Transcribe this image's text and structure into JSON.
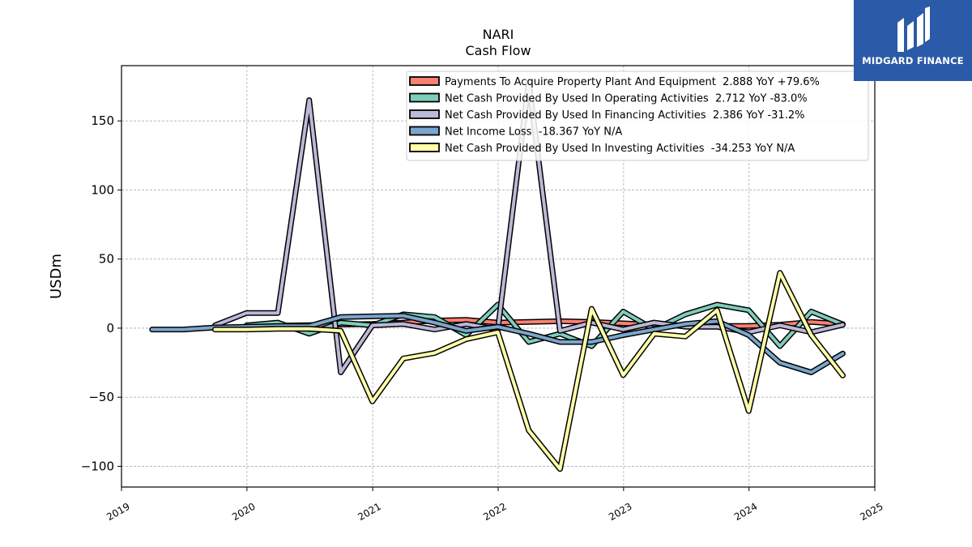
{
  "chart_data": {
    "type": "line",
    "title": "NARI",
    "subtitle": "Cash Flow",
    "xlabel": "",
    "ylabel": "USDm",
    "xlim": [
      "2019-01-01",
      "2025-01-01"
    ],
    "ylim": [
      -115,
      190
    ],
    "x_ticks": [
      "2019",
      "2020",
      "2021",
      "2022",
      "2023",
      "2024",
      "2025"
    ],
    "y_ticks": [
      -100,
      -50,
      0,
      50,
      100,
      150
    ],
    "y_tick_labels": [
      "−100",
      "−50",
      "0",
      "50",
      "100",
      "150"
    ],
    "grid": true,
    "legend_position": "top-right",
    "series": [
      {
        "name": "Payments To Acquire Property Plant And Equipment  2.888 YoY +79.6%",
        "color": "#fa8072",
        "x": [
          "2019-12-31",
          "2020-03-31",
          "2020-06-30",
          "2020-09-30",
          "2020-12-31",
          "2021-03-31",
          "2021-06-30",
          "2021-09-30",
          "2021-12-31",
          "2022-03-31",
          "2022-06-30",
          "2022-09-30",
          "2022-12-31",
          "2023-03-31",
          "2023-06-30",
          "2023-09-30",
          "2023-12-31",
          "2024-03-31",
          "2024-06-30",
          "2024-09-30"
        ],
        "values": [
          1.5,
          1.8,
          2.2,
          2.6,
          3.0,
          4.0,
          5.5,
          6.0,
          4.0,
          4.5,
          5.0,
          4.5,
          3.5,
          2.5,
          2.0,
          1.6,
          1.6,
          2.5,
          4.5,
          2.9
        ]
      },
      {
        "name": "Net Cash Provided By Used In Operating Activities  2.712 YoY -83.0%",
        "color": "#7fcdbb",
        "x": [
          "2019-12-31",
          "2020-03-31",
          "2020-06-30",
          "2020-09-30",
          "2020-12-31",
          "2021-03-31",
          "2021-06-30",
          "2021-09-30",
          "2021-12-31",
          "2022-03-31",
          "2022-06-30",
          "2022-09-30",
          "2022-12-31",
          "2023-03-31",
          "2023-06-30",
          "2023-09-30",
          "2023-12-31",
          "2024-03-31",
          "2024-06-30",
          "2024-09-30"
        ],
        "values": [
          2.0,
          4.0,
          -4.0,
          4.0,
          2.0,
          10.0,
          8.0,
          -5.0,
          17.0,
          -10.0,
          -4.0,
          -13.0,
          12.0,
          -1.0,
          10.0,
          17.0,
          13.0,
          -13.0,
          12.0,
          2.7
        ]
      },
      {
        "name": "Net Cash Provided By Used In Financing Activities  2.386 YoY -31.2%",
        "color": "#bcb8d8",
        "x": [
          "2019-09-30",
          "2019-12-31",
          "2020-03-31",
          "2020-06-30",
          "2020-09-30",
          "2020-12-31",
          "2021-03-31",
          "2021-06-30",
          "2021-09-30",
          "2021-12-31",
          "2022-03-31",
          "2022-06-30",
          "2022-09-30",
          "2022-12-31",
          "2023-03-31",
          "2023-06-30",
          "2023-09-30",
          "2023-12-31",
          "2024-03-31",
          "2024-06-30",
          "2024-09-30"
        ],
        "values": [
          2.0,
          11.0,
          11.0,
          165.0,
          -32.0,
          2.0,
          3.0,
          -1.0,
          3.0,
          -1.0,
          178.0,
          -2.0,
          4.0,
          -1.0,
          4.0,
          1.0,
          1.0,
          -3.0,
          2.0,
          -3.0,
          2.4
        ]
      },
      {
        "name": "Net Income Loss  -18.367 YoY N/A",
        "color": "#7aa6cc",
        "x": [
          "2019-03-31",
          "2019-06-30",
          "2019-09-30",
          "2019-12-31",
          "2020-03-31",
          "2020-06-30",
          "2020-09-30",
          "2020-12-31",
          "2021-03-31",
          "2021-06-30",
          "2021-09-30",
          "2021-12-31",
          "2022-03-31",
          "2022-06-30",
          "2022-09-30",
          "2022-12-31",
          "2023-03-31",
          "2023-06-30",
          "2023-09-30",
          "2023-12-31",
          "2024-03-31",
          "2024-06-30",
          "2024-09-30"
        ],
        "values": [
          -1.0,
          -1.0,
          0.5,
          1.0,
          1.5,
          1.5,
          8.0,
          8.5,
          9.0,
          4.0,
          -2.0,
          1.0,
          -4.0,
          -10.0,
          -10.0,
          -5.0,
          -1.0,
          3.0,
          5.0,
          -5.0,
          -25.0,
          -32.0,
          -18.4
        ]
      },
      {
        "name": "Net Cash Provided By Used In Investing Activities  -34.253 YoY N/A",
        "color": "#ffffaa",
        "x": [
          "2019-09-30",
          "2019-12-31",
          "2020-03-31",
          "2020-06-30",
          "2020-09-30",
          "2020-12-31",
          "2021-03-31",
          "2021-06-30",
          "2021-09-30",
          "2021-12-31",
          "2022-03-31",
          "2022-06-30",
          "2022-09-30",
          "2022-12-31",
          "2023-03-31",
          "2023-06-30",
          "2023-09-30",
          "2023-12-31",
          "2024-03-31",
          "2024-06-30",
          "2024-09-30"
        ],
        "values": [
          -1.0,
          -1.0,
          -0.5,
          -0.5,
          -2.0,
          -53.0,
          -22.0,
          -18.0,
          -8.0,
          -3.0,
          -74.0,
          -102.0,
          14.0,
          -34.0,
          -4.0,
          -6.0,
          13.0,
          -60.0,
          40.0,
          -5.0,
          -34.3
        ]
      }
    ]
  },
  "branding": {
    "logo_text": "MIDGARD FINANCE"
  }
}
